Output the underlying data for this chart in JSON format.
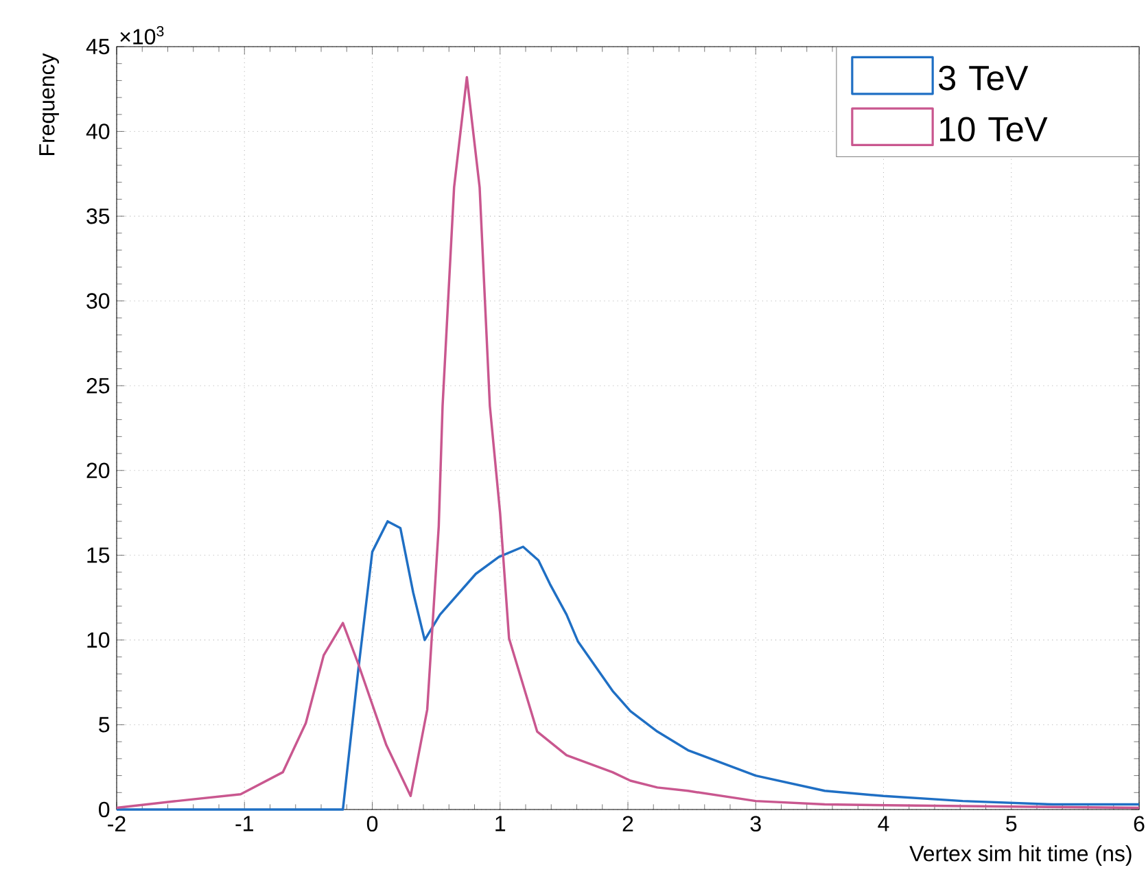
{
  "chart_data": {
    "type": "line",
    "xlabel": "Vertex sim hit time (ns)",
    "ylabel": "Frequency",
    "annotations": [
      "×10$^{3}$"
    ],
    "xlim": [
      -2,
      6
    ],
    "ylim": [
      0,
      45
    ],
    "xticks": [
      -2,
      -1,
      0,
      1,
      2,
      3,
      4,
      5,
      6
    ],
    "yticks": [
      0,
      5,
      10,
      15,
      20,
      25,
      30,
      35,
      40,
      45
    ],
    "grid": true,
    "legend": "top right",
    "series": [
      {
        "name": "3 TeV",
        "color": "#1f6fc4",
        "x": [
          -2,
          -0.5,
          -0.23,
          -0.11,
          0.0,
          0.12,
          0.22,
          0.32,
          0.41,
          0.53,
          0.81,
          0.99,
          1.18,
          1.3,
          1.39,
          1.52,
          1.61,
          1.88,
          2.02,
          2.23,
          2.47,
          3.0,
          3.54,
          4.0,
          4.62,
          5.33,
          6
        ],
        "values": [
          0,
          0,
          0,
          8.2,
          15.2,
          17.0,
          16.6,
          12.8,
          10.0,
          11.5,
          13.9,
          14.9,
          15.5,
          14.7,
          13.3,
          11.5,
          9.9,
          7.0,
          5.8,
          4.6,
          3.5,
          2.0,
          1.1,
          0.8,
          0.5,
          0.3,
          0.3
        ]
      },
      {
        "name": "10 TeV",
        "color": "#c9578f",
        "x": [
          -2,
          -1.53,
          -1.03,
          -0.7,
          -0.52,
          -0.38,
          -0.23,
          -0.11,
          0.11,
          0.3,
          0.43,
          0.52,
          0.55,
          0.64,
          0.74,
          0.84,
          0.92,
          1.0,
          1.07,
          1.29,
          1.52,
          1.88,
          2.02,
          2.23,
          2.47,
          3.0,
          3.54,
          4.62,
          6
        ],
        "values": [
          0.1,
          0.5,
          0.9,
          2.2,
          5.1,
          9.1,
          11.0,
          8.6,
          3.8,
          0.8,
          5.9,
          16.7,
          23.8,
          36.7,
          43.2,
          36.7,
          23.8,
          17.5,
          10.1,
          4.6,
          3.2,
          2.2,
          1.7,
          1.3,
          1.1,
          0.5,
          0.3,
          0.2,
          0.1
        ]
      }
    ]
  }
}
